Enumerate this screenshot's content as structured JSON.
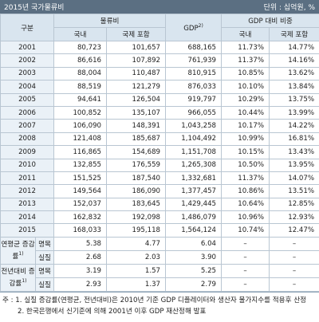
{
  "header": {
    "title": "2015년 국가물류비",
    "unit": "단위 : 십억원, %"
  },
  "columns": {
    "category": "구분",
    "logistics": "물류비",
    "domestic": "국내",
    "international": "국제 포함",
    "gdp": "GDP",
    "gdp_note": "2)",
    "ratio": "GDP 대비 비중",
    "ratio_domestic": "국내",
    "ratio_international": "국제 포함"
  },
  "rows": [
    [
      "2001",
      "80,723",
      "101,657",
      "688,165",
      "11.73%",
      "14.77%"
    ],
    [
      "2002",
      "86,616",
      "107,892",
      "761,939",
      "11.37%",
      "14.16%"
    ],
    [
      "2003",
      "88,004",
      "110,487",
      "810,915",
      "10.85%",
      "13.62%"
    ],
    [
      "2004",
      "88,519",
      "121,279",
      "876,033",
      "10.10%",
      "13.84%"
    ],
    [
      "2005",
      "94,641",
      "126,504",
      "919,797",
      "10.29%",
      "13.75%"
    ],
    [
      "2006",
      "100,852",
      "135,107",
      "966,055",
      "10.44%",
      "13.99%"
    ],
    [
      "2007",
      "106,090",
      "148,391",
      "1,043,258",
      "10.17%",
      "14.22%"
    ],
    [
      "2008",
      "121,408",
      "185,687",
      "1,104,492",
      "10.99%",
      "16.81%"
    ],
    [
      "2009",
      "116,865",
      "154,689",
      "1,151,708",
      "10.15%",
      "13.43%"
    ],
    [
      "2010",
      "132,855",
      "176,559",
      "1,265,308",
      "10.50%",
      "13.95%"
    ],
    [
      "2011",
      "151,525",
      "187,540",
      "1,332,681",
      "11.37%",
      "14.07%"
    ],
    [
      "2012",
      "149,564",
      "186,090",
      "1,377,457",
      "10.86%",
      "13.51%"
    ],
    [
      "2013",
      "152,037",
      "183,645",
      "1,429,445",
      "10.64%",
      "12.85%"
    ],
    [
      "2014",
      "162,832",
      "192,098",
      "1,486,079",
      "10.96%",
      "12.93%"
    ],
    [
      "2015",
      "168,033",
      "195,118",
      "1,564,124",
      "10.74%",
      "12.47%"
    ]
  ],
  "summary": [
    {
      "label": "연평균 증감률",
      "note": "1)",
      "rows": [
        [
          "명목",
          "5.38",
          "4.77",
          "6.04",
          "–",
          "–"
        ],
        [
          "실질",
          "2.68",
          "2.03",
          "3.90",
          "–",
          "–"
        ]
      ]
    },
    {
      "label": "전년대비 증감률",
      "note": "1)",
      "rows": [
        [
          "명목",
          "3.19",
          "1.57",
          "5.25",
          "–",
          "–"
        ],
        [
          "실질",
          "2.93",
          "1.37",
          "2.79",
          "–",
          "–"
        ]
      ]
    }
  ],
  "notes": {
    "prefix": "주 :",
    "items": [
      "1. 실질 증감률(연평균, 전년대비)은 2010년 기준 GDP 디플레이터와 생산자 물가지수를 적용후 산정",
      "2. 한국은행에서 신기준에 의해 2001년 이후 GDP 재산정해 발표"
    ]
  }
}
